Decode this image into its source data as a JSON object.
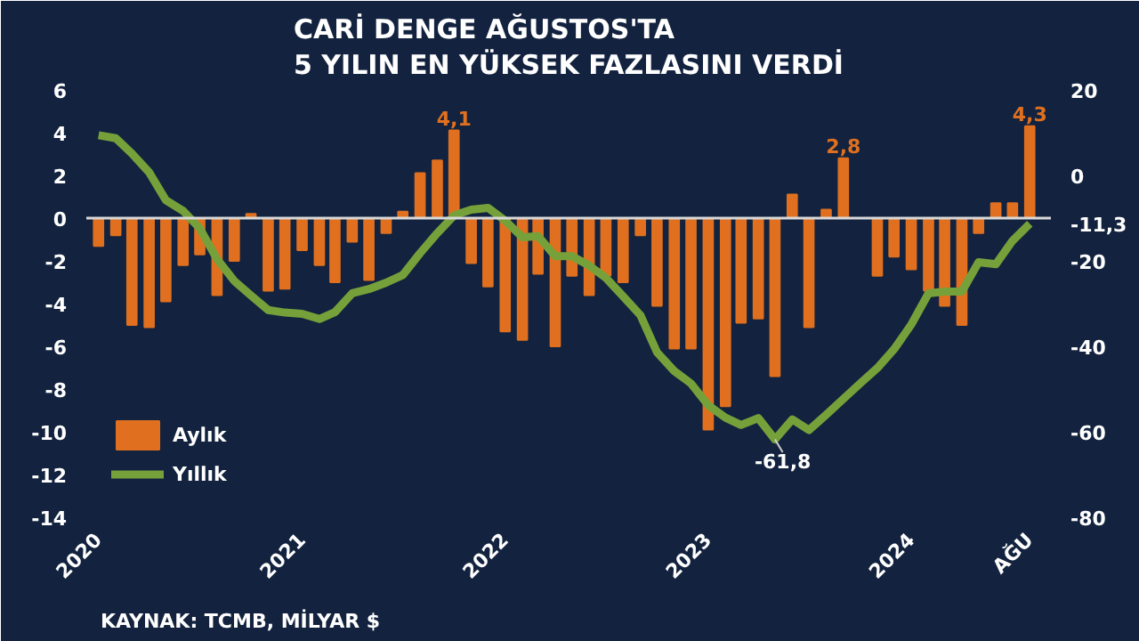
{
  "chart_data": {
    "type": "bar",
    "title": "CARİ DENGE AĞUSTOS'TA\n5 YILIN EN YÜKSEK FAZLASINI VERDİ",
    "annotations": [
      "KAYNAK: TCMB, MİLYAR $",
      "-61,8"
    ],
    "x": [
      "2020-01",
      "2020-02",
      "2020-03",
      "2020-04",
      "2020-05",
      "2020-06",
      "2020-07",
      "2020-08",
      "2020-09",
      "2020-10",
      "2020-11",
      "2020-12",
      "2021-01",
      "2021-02",
      "2021-03",
      "2021-04",
      "2021-05",
      "2021-06",
      "2021-07",
      "2021-08",
      "2021-09",
      "2021-10",
      "2021-11",
      "2021-12",
      "2022-01",
      "2022-02",
      "2022-03",
      "2022-04",
      "2022-05",
      "2022-06",
      "2022-07",
      "2022-08",
      "2022-09",
      "2022-10",
      "2022-11",
      "2022-12",
      "2023-01",
      "2023-02",
      "2023-03",
      "2023-04",
      "2023-05",
      "2023-06",
      "2023-07",
      "2023-08",
      "2023-09",
      "2023-10",
      "2023-11",
      "2023-12",
      "2024-01",
      "2024-02",
      "2024-03",
      "2024-04",
      "2024-05",
      "2024-06",
      "2024-07",
      "2024-08"
    ],
    "series": [
      {
        "name": "Aylık",
        "color": "#e0701f",
        "values": [
          -1.3,
          -0.8,
          -5.0,
          -5.1,
          -3.9,
          -2.2,
          -1.7,
          -3.6,
          -2.0,
          0.2,
          -3.4,
          -3.3,
          -1.5,
          -2.2,
          -3.0,
          -1.1,
          -2.9,
          -0.7,
          0.3,
          2.1,
          2.7,
          4.1,
          -2.1,
          -3.2,
          -5.3,
          -5.7,
          -2.6,
          -6.0,
          -2.7,
          -3.6,
          -2.7,
          -3.0,
          -0.8,
          -4.1,
          -6.1,
          -6.1,
          -9.9,
          -8.8,
          -4.9,
          -4.7,
          -7.4,
          1.1,
          -5.1,
          0.4,
          2.8,
          0,
          -2.7,
          -1.8,
          -2.4,
          -3.4,
          -4.1,
          -5.0,
          -0.7,
          0.7,
          0.7,
          4.3
        ],
        "value_labels": [
          null,
          null,
          null,
          null,
          null,
          null,
          null,
          null,
          null,
          null,
          null,
          null,
          null,
          null,
          null,
          null,
          null,
          null,
          null,
          null,
          null,
          "4,1",
          null,
          null,
          null,
          null,
          null,
          null,
          null,
          null,
          null,
          null,
          null,
          null,
          null,
          null,
          null,
          null,
          null,
          null,
          null,
          null,
          null,
          null,
          "2,8",
          null,
          null,
          null,
          null,
          null,
          null,
          null,
          null,
          null,
          null,
          "4,3"
        ]
      },
      {
        "name": "Yıllık",
        "type": "line",
        "axis": "y2",
        "color": "#76a13a",
        "values": [
          9.4,
          8.7,
          5.1,
          0.7,
          -5.8,
          -8.3,
          -12.4,
          -19.6,
          -24.7,
          -28.1,
          -31.5,
          -32.1,
          -32.4,
          -33.6,
          -32.0,
          -27.6,
          -26.6,
          -25.1,
          -23.3,
          -18.2,
          -13.5,
          -9.4,
          -8.0,
          -7.6,
          -10.6,
          -14.5,
          -14.2,
          -18.9,
          -18.9,
          -21.1,
          -24.0,
          -28.3,
          -32.7,
          -41.4,
          -45.8,
          -48.7,
          -53.8,
          -56.7,
          -58.4,
          -56.8,
          -61.8,
          -57.1,
          -59.6,
          -56.0,
          -52.3,
          -48.7,
          -45.1,
          -40.7,
          -34.9,
          -27.6,
          -27.2,
          -27.2,
          -20.3,
          -20.8,
          -15.3,
          -11.3
        ]
      }
    ],
    "xlim": [
      "2019-12-10",
      "2024-09-08"
    ],
    "xticks": [
      {
        "value": "2020-01",
        "label": "2020"
      },
      {
        "value": "2021-01",
        "label": "2021"
      },
      {
        "value": "2022-01",
        "label": "2022"
      },
      {
        "value": "2023-01",
        "label": "2023"
      },
      {
        "value": "2024-01",
        "label": "2024"
      },
      {
        "value": "2024-08",
        "label": "AĞU"
      }
    ],
    "ylim": [
      -14,
      6
    ],
    "yticks": [
      -14,
      -12,
      -10,
      -8,
      -6,
      -4,
      -2,
      0,
      2,
      4,
      6
    ],
    "y2lim": [
      -80,
      20
    ],
    "y2ticks": [
      20,
      0,
      {
        "value": -11.3,
        "label": "-11,3"
      },
      -20,
      -40,
      -60,
      -80
    ],
    "ref_lines": [
      {
        "axis": "y",
        "value": 0,
        "color": "#d9d9d9"
      }
    ],
    "legend": "bottom left",
    "grid": false
  }
}
